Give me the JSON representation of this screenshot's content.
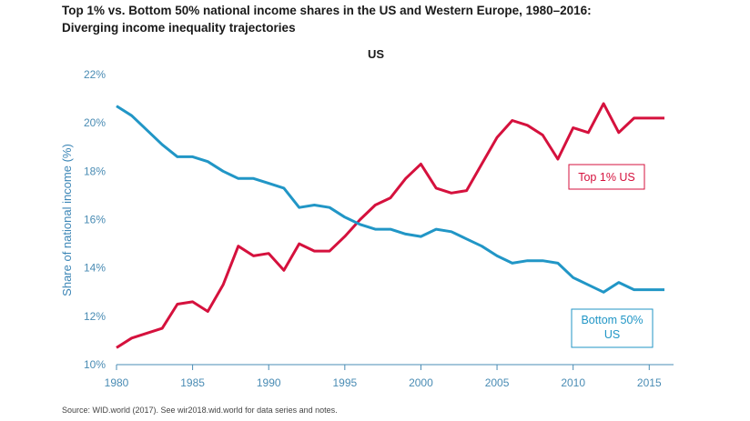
{
  "title": "Top 1% vs. Bottom 50% national income shares in the US and Western Europe, 1980–2016:",
  "subtitle": "Diverging income inequality trajectories",
  "source": "Source:  WID.world (2017). See wir2018.wid.world for data series and notes.",
  "colors": {
    "top": "#d5113d",
    "bottom": "#2196c6",
    "axis": "#4a8cb4"
  },
  "chart_data": {
    "type": "line",
    "title": "US",
    "xlabel": "",
    "ylabel": "Share of national income (%)",
    "xlim": [
      1980,
      2016
    ],
    "ylim": [
      10,
      22
    ],
    "grid": false,
    "xticks": [
      1980,
      1985,
      1990,
      1995,
      2000,
      2005,
      2010,
      2015
    ],
    "yticks": [
      10,
      12,
      14,
      16,
      18,
      20,
      22
    ],
    "ytick_labels": [
      "10%",
      "12%",
      "14%",
      "16%",
      "18%",
      "20%",
      "22%"
    ],
    "x": [
      1980,
      1981,
      1982,
      1983,
      1984,
      1985,
      1986,
      1987,
      1988,
      1989,
      1990,
      1991,
      1992,
      1993,
      1994,
      1995,
      1996,
      1997,
      1998,
      1999,
      2000,
      2001,
      2002,
      2003,
      2004,
      2005,
      2006,
      2007,
      2008,
      2009,
      2010,
      2011,
      2012,
      2013,
      2014,
      2015,
      2016
    ],
    "series": [
      {
        "name": "Top 1% US",
        "color": "#d5113d",
        "values": [
          10.7,
          11.1,
          11.3,
          11.5,
          12.5,
          12.6,
          12.2,
          13.3,
          14.9,
          14.5,
          14.6,
          13.9,
          15.0,
          14.7,
          14.7,
          15.3,
          16.0,
          16.6,
          16.9,
          17.7,
          18.3,
          17.3,
          17.1,
          17.2,
          18.3,
          19.4,
          20.1,
          19.9,
          19.5,
          18.5,
          19.8,
          19.6,
          20.8,
          19.6,
          20.2,
          20.2,
          20.2
        ]
      },
      {
        "name": "Bottom 50%\nUS",
        "color": "#2196c6",
        "values": [
          20.7,
          20.3,
          19.7,
          19.1,
          18.6,
          18.6,
          18.4,
          18.0,
          17.7,
          17.7,
          17.5,
          17.3,
          16.5,
          16.6,
          16.5,
          16.1,
          15.8,
          15.6,
          15.6,
          15.4,
          15.3,
          15.6,
          15.5,
          15.2,
          14.9,
          14.5,
          14.2,
          14.3,
          14.3,
          14.2,
          13.6,
          13.3,
          13.0,
          13.4,
          13.1,
          13.1,
          13.1
        ]
      }
    ],
    "annotations": [
      {
        "text": "Top 1% US",
        "color": "#d5113d"
      },
      {
        "text_line1": "Bottom 50%",
        "text_line2": "US",
        "color": "#2196c6"
      }
    ]
  }
}
